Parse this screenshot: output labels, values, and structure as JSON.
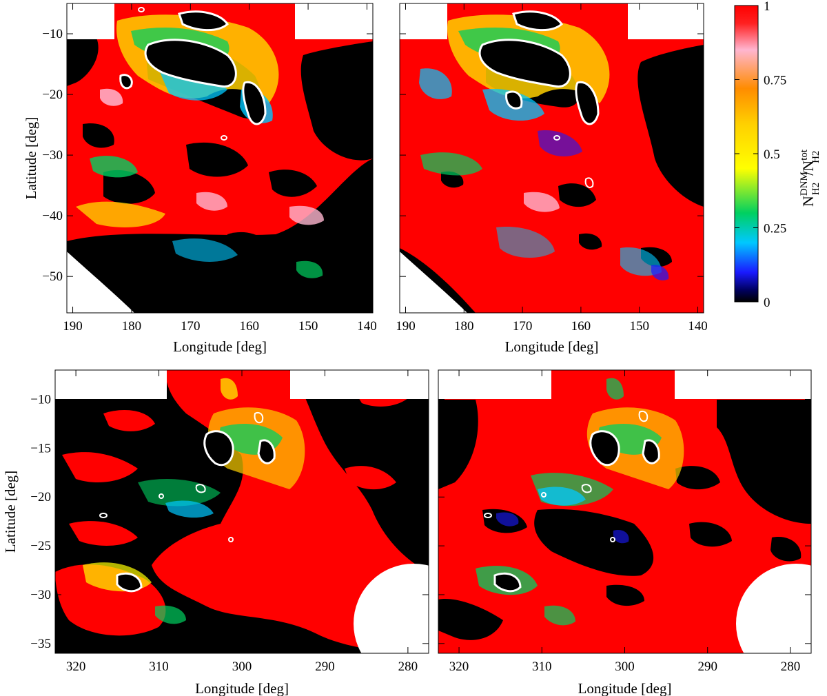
{
  "chart_data": [
    {
      "type": "heatmap",
      "panel": "top-left",
      "xlabel": "Longitude [deg]",
      "ylabel": "Latitude [deg]",
      "xlim": [
        191,
        139
      ],
      "ylim": [
        -56,
        -5
      ],
      "xticks": [
        190,
        180,
        170,
        160,
        150,
        140
      ],
      "yticks": [
        -10,
        -20,
        -30,
        -40,
        -50
      ],
      "x_tick_labels": [
        "190",
        "180",
        "170",
        "160",
        "150",
        "140"
      ],
      "y_tick_labels": [
        "−10",
        "−20",
        "−30",
        "−40",
        "−50"
      ],
      "no_data_regions": [
        "lat > -9 outside lon 152–183",
        "lower-left wedge"
      ]
    },
    {
      "type": "heatmap",
      "panel": "top-right",
      "xlabel": "Longitude [deg]",
      "ylabel": "",
      "xlim": [
        191,
        139
      ],
      "ylim": [
        -56,
        -5
      ],
      "xticks": [
        190,
        180,
        170,
        160,
        150,
        140
      ],
      "yticks": [
        -10,
        -20,
        -30,
        -40,
        -50
      ],
      "x_tick_labels": [
        "190",
        "180",
        "170",
        "160",
        "150",
        "140"
      ],
      "y_tick_labels": [],
      "no_data_regions": [
        "lat > -9 outside lon 152–183",
        "lower-left wedge"
      ]
    },
    {
      "type": "heatmap",
      "panel": "bottom-left",
      "xlabel": "Longitude [deg]",
      "ylabel": "Latitude [deg]",
      "xlim": [
        322.5,
        277.5
      ],
      "ylim": [
        -36,
        -7
      ],
      "xticks": [
        320,
        310,
        300,
        290,
        280
      ],
      "yticks": [
        -10,
        -15,
        -20,
        -25,
        -30,
        -35
      ],
      "x_tick_labels": [
        "320",
        "310",
        "300",
        "290",
        "280"
      ],
      "y_tick_labels": [
        "−10",
        "−15",
        "−20",
        "−25",
        "−30",
        "−35"
      ],
      "no_data_regions": [
        "lat > -10 outside lon 293–310",
        "circle near lon 281, lat -32"
      ]
    },
    {
      "type": "heatmap",
      "panel": "bottom-right",
      "xlabel": "Longitude [deg]",
      "ylabel": "",
      "xlim": [
        322.5,
        277.5
      ],
      "ylim": [
        -36,
        -7
      ],
      "xticks": [
        320,
        310,
        300,
        290,
        280
      ],
      "yticks": [
        -10,
        -15,
        -20,
        -25,
        -30,
        -35
      ],
      "x_tick_labels": [
        "320",
        "310",
        "300",
        "290",
        "280"
      ],
      "y_tick_labels": [],
      "no_data_regions": [
        "lat > -10 outside lon 293–310",
        "circle near lon 281, lat -32"
      ]
    }
  ],
  "colorbar": {
    "title_main_1": "N",
    "title_sup_1": "DNM",
    "title_sub_1": "H2",
    "title_sep": "/N",
    "title_sup_2": "tot",
    "title_sub_2": "H2",
    "range": [
      0,
      1
    ],
    "ticks": [
      0,
      0.25,
      0.5,
      0.75,
      1
    ],
    "tick_labels": [
      "0",
      "0.25",
      "0.5",
      "0.75",
      "1"
    ],
    "colors": [
      "#000000",
      "#1a1aff",
      "#00c8ff",
      "#00d060",
      "#ffff00",
      "#ff8c00",
      "#ffb6d0",
      "#ff0000"
    ]
  },
  "colors": {
    "dnm_full": "#ff0000",
    "no_dnm": "#000000",
    "contour": "#ffffff",
    "no_data": "#ffffff"
  }
}
